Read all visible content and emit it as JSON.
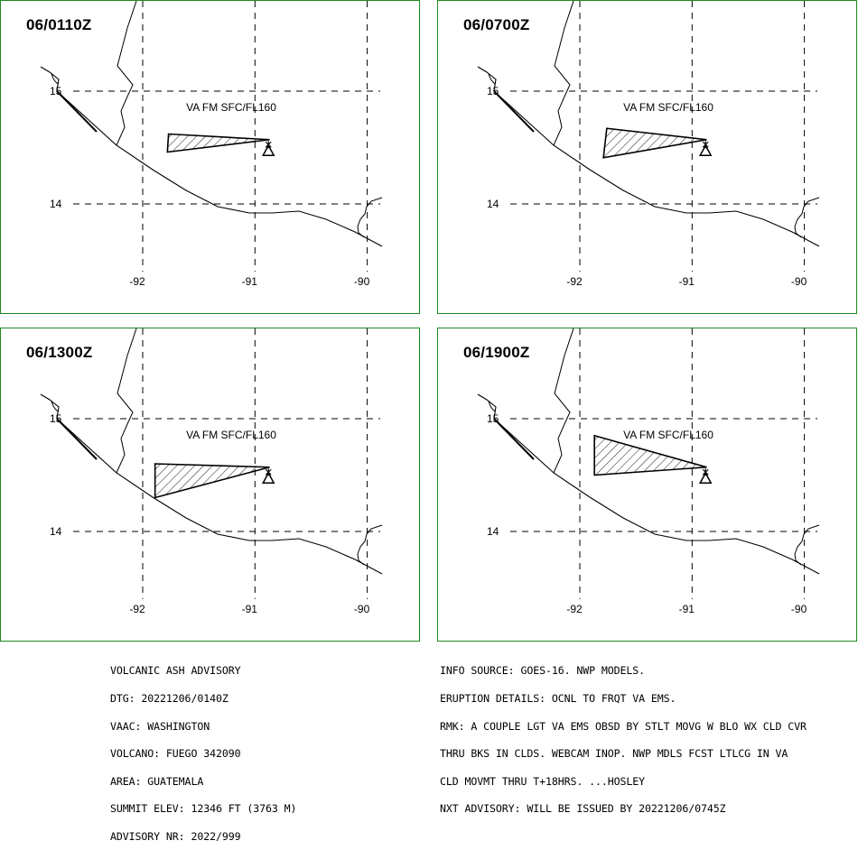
{
  "panels": [
    {
      "time": "06/0110Z",
      "label": "VA FM SFC/FL160",
      "polygon": [
        [
          -91.77,
          14.62
        ],
        [
          -90.87,
          14.57
        ],
        [
          -91.78,
          14.46
        ]
      ]
    },
    {
      "time": "06/0700Z",
      "label": "VA FM SFC/FL160",
      "polygon": [
        [
          -91.76,
          14.67
        ],
        [
          -90.87,
          14.57
        ],
        [
          -91.79,
          14.41
        ]
      ]
    },
    {
      "time": "06/1300Z",
      "label": "VA FM SFC/FL160",
      "polygon": [
        [
          -91.89,
          14.6
        ],
        [
          -90.87,
          14.57
        ],
        [
          -91.89,
          14.3
        ]
      ]
    },
    {
      "time": "06/1900Z",
      "label": "VA FM SFC/FL160",
      "polygon": [
        [
          -91.87,
          14.85
        ],
        [
          -90.87,
          14.57
        ],
        [
          -91.87,
          14.5
        ]
      ]
    }
  ],
  "volcano": {
    "name": "FUEGO",
    "lon": -90.88,
    "lat": 14.47
  },
  "grid": {
    "lon_lines": [
      -92,
      -91,
      -90
    ],
    "lat_lines": [
      15,
      14
    ],
    "lon_labels": [
      "-92",
      "-91",
      "-90"
    ],
    "lat_labels": [
      "15",
      "14"
    ]
  },
  "advisory_left": [
    "VOLCANIC ASH ADVISORY",
    "DTG: 20221206/0140Z",
    "VAAC: WASHINGTON",
    "VOLCANO: FUEGO 342090",
    "AREA: GUATEMALA",
    "SUMMIT ELEV: 12346 FT (3763 M)",
    "ADVISORY NR: 2022/999"
  ],
  "advisory_right": [
    "INFO SOURCE: GOES-16. NWP MODELS.",
    "ERUPTION DETAILS: OCNL TO FRQT VA EMS.",
    "RMK: A COUPLE LGT VA EMS OBSD BY STLT MOVG W BLO WX CLD CVR",
    "THRU BKS IN CLDS. WEBCAM INOP. NWP MDLS FCST LTLCG IN VA",
    "CLD MOVMT THRU T+18HRS. ...HOSLEY",
    "NXT ADVISORY: WILL BE ISSUED BY 20221206/0745Z"
  ],
  "colors": {
    "panel_border": "#1e8a1e",
    "lines": "#000000"
  }
}
